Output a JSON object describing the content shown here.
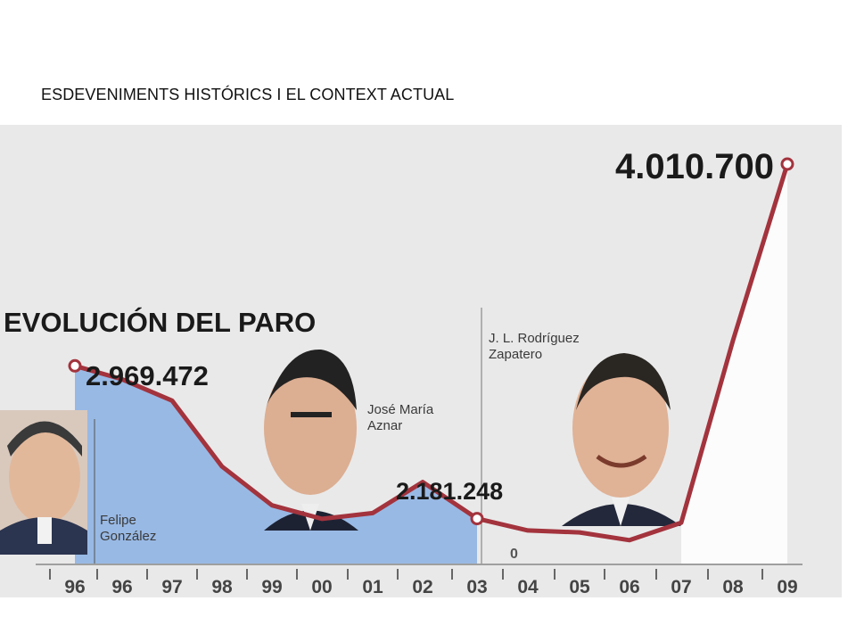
{
  "slide": {
    "title": "ESDEVENIMENTS HISTÓRICS I EL CONTEXT ACTUAL"
  },
  "chart_data": {
    "type": "line",
    "title": "EVOLUCIÓN DEL PARO",
    "x": [
      "96",
      "96",
      "97",
      "98",
      "99",
      "00",
      "01",
      "02",
      "03",
      "04",
      "05",
      "06",
      "07",
      "08",
      "09"
    ],
    "series": [
      {
        "values": [
          2969472,
          2900000,
          2790000,
          2450000,
          2250000,
          2180000,
          2210000,
          2370000,
          2181248,
          2120000,
          2110000,
          2070000,
          2160000,
          3100000,
          4010700
        ]
      }
    ],
    "labels": [
      {
        "index": 0,
        "text": "2.969.472"
      },
      {
        "index": 8,
        "text": "2.181.248"
      },
      {
        "index": 14,
        "text": "4.010.700"
      }
    ],
    "periods": [
      {
        "name": "Felipe González",
        "start": 0,
        "end": 1
      },
      {
        "name": "José María Aznar",
        "start": 1,
        "end": 8
      },
      {
        "name": "J. L. Rodríguez Zapatero",
        "start": 8,
        "end": 14
      }
    ],
    "axis_zero_label": "0",
    "colors": {
      "line": "#a3333d",
      "area": "#8fb4e3",
      "panel": "#e9e9e9",
      "axis": "#555555"
    }
  }
}
